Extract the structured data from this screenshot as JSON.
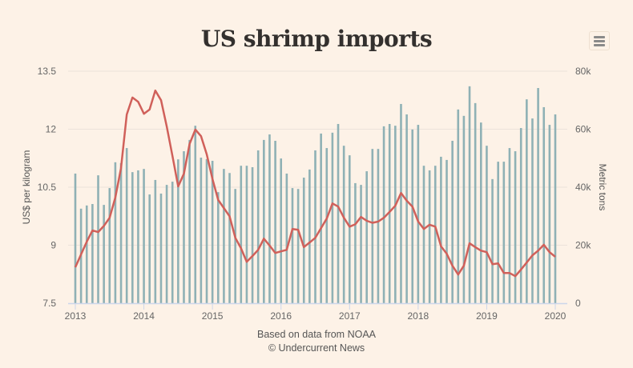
{
  "header": {
    "title": "US shrimp imports",
    "menu_icon": "hamburger-menu-icon"
  },
  "credits": {
    "line1": "Based on data from NOAA",
    "line2": "© Undercurrent News"
  },
  "colors": {
    "background": "#fdf2e7",
    "bars": "#8fb1b5",
    "line": "#d0605a",
    "grid": "#ece3da"
  },
  "chart_data": {
    "type": "bar+line",
    "title": "US shrimp imports",
    "xlabel": "",
    "ylabel_left": "US$ per kilogram",
    "ylabel_right": "Metric tons",
    "x_ticks": [
      "2013",
      "2014",
      "2015",
      "2016",
      "2017",
      "2018",
      "2019",
      "2020"
    ],
    "y_left_ticks": [
      "7.5",
      "9",
      "10.5",
      "12",
      "13.5"
    ],
    "y_right_ticks": [
      "0",
      "20k",
      "40k",
      "60k",
      "80k"
    ],
    "ylim_left": [
      7.5,
      13.5
    ],
    "ylim_right": [
      0,
      80000
    ],
    "grid": true,
    "legend": "none",
    "x_start": "2013-01",
    "x_end": "2020-01",
    "months": [
      "2013-01",
      "2013-02",
      "2013-03",
      "2013-04",
      "2013-05",
      "2013-06",
      "2013-07",
      "2013-08",
      "2013-09",
      "2013-10",
      "2013-11",
      "2013-12",
      "2014-01",
      "2014-02",
      "2014-03",
      "2014-04",
      "2014-05",
      "2014-06",
      "2014-07",
      "2014-08",
      "2014-09",
      "2014-10",
      "2014-11",
      "2014-12",
      "2015-01",
      "2015-02",
      "2015-03",
      "2015-04",
      "2015-05",
      "2015-06",
      "2015-07",
      "2015-08",
      "2015-09",
      "2015-10",
      "2015-11",
      "2015-12",
      "2016-01",
      "2016-02",
      "2016-03",
      "2016-04",
      "2016-05",
      "2016-06",
      "2016-07",
      "2016-08",
      "2016-09",
      "2016-10",
      "2016-11",
      "2016-12",
      "2017-01",
      "2017-02",
      "2017-03",
      "2017-04",
      "2017-05",
      "2017-06",
      "2017-07",
      "2017-08",
      "2017-09",
      "2017-10",
      "2017-11",
      "2017-12",
      "2018-01",
      "2018-02",
      "2018-03",
      "2018-04",
      "2018-05",
      "2018-06",
      "2018-07",
      "2018-08",
      "2018-09",
      "2018-10",
      "2018-11",
      "2018-12",
      "2019-01",
      "2019-02",
      "2019-03",
      "2019-04",
      "2019-05",
      "2019-06",
      "2019-07",
      "2019-08",
      "2019-09",
      "2019-10",
      "2019-11",
      "2019-12",
      "2020-01"
    ],
    "series": [
      {
        "name": "Metric tons",
        "type": "bar",
        "axis": "right",
        "values": [
          44700,
          32600,
          33700,
          34200,
          44100,
          33900,
          39700,
          48600,
          48300,
          53500,
          45200,
          45800,
          46300,
          37500,
          42500,
          37800,
          40800,
          41900,
          49600,
          52400,
          56300,
          61200,
          50200,
          49700,
          49100,
          38300,
          46300,
          44900,
          39400,
          47400,
          47400,
          46900,
          52700,
          56300,
          58200,
          56000,
          49900,
          44700,
          39700,
          39400,
          43300,
          46100,
          52700,
          58500,
          53500,
          58800,
          61800,
          54300,
          51000,
          41400,
          40800,
          45500,
          53200,
          53200,
          61000,
          61800,
          61200,
          68700,
          65100,
          59900,
          61500,
          47400,
          45800,
          47400,
          50500,
          49400,
          56000,
          66800,
          64600,
          74800,
          69000,
          62300,
          54300,
          42800,
          48800,
          48800,
          53500,
          52400,
          60400,
          70300,
          63700,
          74200,
          67600,
          61500,
          65100
        ]
      },
      {
        "name": "US$ per kilogram",
        "type": "line",
        "axis": "left",
        "values": [
          8.43,
          8.76,
          9.09,
          9.38,
          9.34,
          9.5,
          9.71,
          10.23,
          10.99,
          12.38,
          12.82,
          12.71,
          12.4,
          12.51,
          13.0,
          12.75,
          12.07,
          11.31,
          10.52,
          10.85,
          11.62,
          11.99,
          11.82,
          11.35,
          10.72,
          10.17,
          9.96,
          9.75,
          9.19,
          8.92,
          8.57,
          8.72,
          8.88,
          9.17,
          8.99,
          8.8,
          8.84,
          8.88,
          9.42,
          9.4,
          8.95,
          9.07,
          9.19,
          9.44,
          9.69,
          10.08,
          10.0,
          9.71,
          9.48,
          9.54,
          9.73,
          9.63,
          9.58,
          9.61,
          9.71,
          9.86,
          10.02,
          10.35,
          10.15,
          10.0,
          9.61,
          9.42,
          9.53,
          9.48,
          8.97,
          8.78,
          8.47,
          8.24,
          8.47,
          9.05,
          8.95,
          8.86,
          8.82,
          8.51,
          8.53,
          8.28,
          8.28,
          8.2,
          8.37,
          8.55,
          8.74,
          8.86,
          9.01,
          8.82,
          8.7
        ]
      }
    ]
  }
}
